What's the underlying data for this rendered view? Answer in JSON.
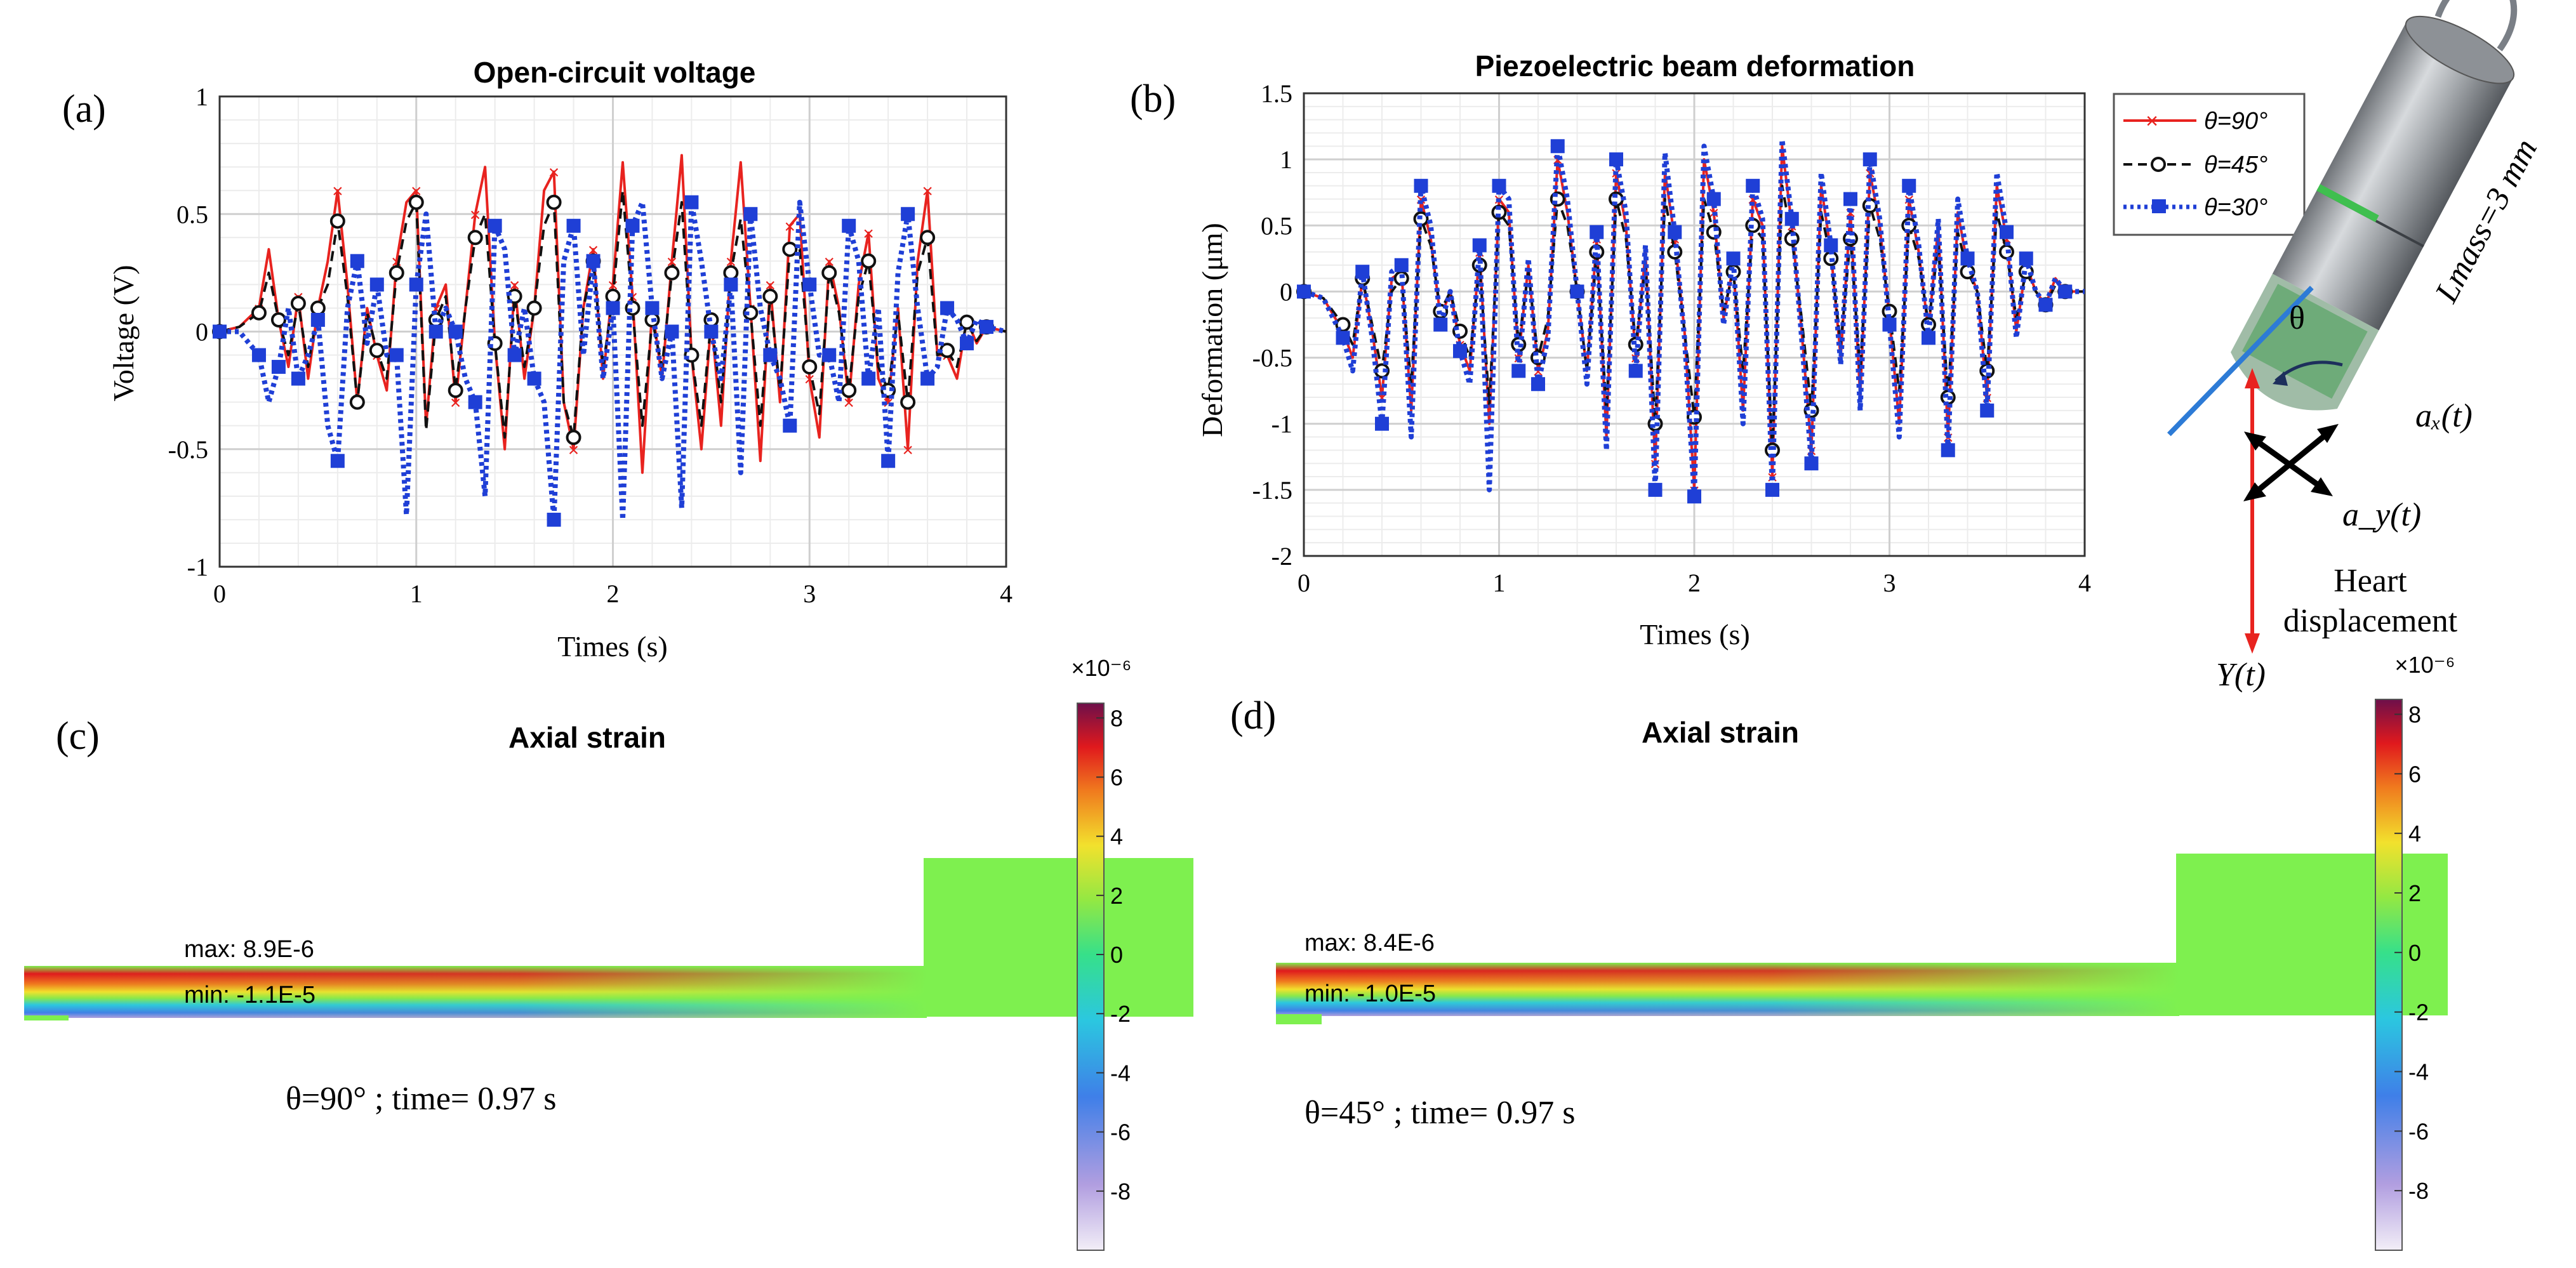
{
  "panels": {
    "a": "(a)",
    "b": "(b)",
    "c": "(c)",
    "d": "(d)"
  },
  "chart_data": [
    {
      "type": "line",
      "panel": "(a)",
      "title": "Open-circuit voltage",
      "xlabel": "Times (s)",
      "ylabel": "Voltage (V)",
      "xlim": [
        0,
        4
      ],
      "ylim": [
        -1,
        1
      ],
      "xticks": [
        "0",
        "1",
        "2",
        "3",
        "4"
      ],
      "yticks": [
        "-1",
        "-0.5",
        "0",
        "0.5",
        "1"
      ],
      "grid": true,
      "x": [
        0.0,
        0.1,
        0.2,
        0.25,
        0.3,
        0.35,
        0.4,
        0.45,
        0.5,
        0.55,
        0.6,
        0.65,
        0.7,
        0.75,
        0.8,
        0.85,
        0.9,
        0.95,
        1.0,
        1.05,
        1.1,
        1.15,
        1.2,
        1.25,
        1.3,
        1.35,
        1.4,
        1.45,
        1.5,
        1.55,
        1.6,
        1.65,
        1.7,
        1.75,
        1.8,
        1.85,
        1.9,
        1.95,
        2.0,
        2.05,
        2.1,
        2.15,
        2.2,
        2.25,
        2.3,
        2.35,
        2.4,
        2.45,
        2.5,
        2.55,
        2.6,
        2.65,
        2.7,
        2.75,
        2.8,
        2.85,
        2.9,
        2.95,
        3.0,
        3.05,
        3.1,
        3.15,
        3.2,
        3.25,
        3.3,
        3.35,
        3.4,
        3.45,
        3.5,
        3.55,
        3.6,
        3.65,
        3.7,
        3.75,
        3.8,
        3.85,
        3.9,
        4.0
      ],
      "series": [
        {
          "name": "θ=90°",
          "color": "#e8231f",
          "dash": "solid",
          "marker": "x",
          "values": [
            0.0,
            0.02,
            0.1,
            0.35,
            0.05,
            -0.15,
            0.15,
            -0.2,
            0.1,
            0.3,
            0.6,
            0.2,
            -0.3,
            0.1,
            -0.1,
            -0.25,
            0.3,
            0.55,
            0.6,
            -0.4,
            0.1,
            0.2,
            -0.3,
            0.1,
            0.5,
            0.7,
            -0.05,
            -0.5,
            0.2,
            -0.2,
            0.1,
            0.6,
            0.68,
            -0.3,
            -0.5,
            0.1,
            0.35,
            -0.2,
            0.2,
            0.72,
            0.15,
            -0.6,
            0.1,
            -0.2,
            0.3,
            0.75,
            -0.1,
            -0.5,
            0.05,
            -0.4,
            0.3,
            0.72,
            0.1,
            -0.55,
            0.2,
            -0.3,
            0.45,
            0.5,
            -0.2,
            -0.45,
            0.3,
            0.1,
            -0.3,
            0.2,
            0.42,
            -0.2,
            -0.3,
            0.1,
            -0.5,
            0.3,
            0.6,
            -0.1,
            -0.1,
            -0.2,
            0.05,
            -0.05,
            0.02,
            0.0
          ]
        },
        {
          "name": "θ=45°",
          "color": "#111111",
          "dash": "dashed",
          "marker": "o",
          "values": [
            0.0,
            0.02,
            0.08,
            0.25,
            0.05,
            -0.1,
            0.12,
            -0.15,
            0.1,
            0.2,
            0.47,
            0.15,
            -0.3,
            0.08,
            -0.08,
            -0.2,
            0.25,
            0.47,
            0.55,
            -0.42,
            0.05,
            0.15,
            -0.25,
            0.1,
            0.4,
            0.5,
            -0.05,
            -0.45,
            0.15,
            -0.15,
            0.1,
            0.45,
            0.55,
            -0.3,
            -0.45,
            0.1,
            0.3,
            -0.15,
            0.15,
            0.6,
            0.1,
            -0.4,
            0.05,
            -0.15,
            0.25,
            0.55,
            -0.1,
            -0.4,
            0.05,
            -0.3,
            0.25,
            0.48,
            0.08,
            -0.4,
            0.15,
            -0.25,
            0.35,
            0.35,
            -0.15,
            -0.35,
            0.25,
            0.08,
            -0.25,
            0.15,
            0.3,
            -0.15,
            -0.25,
            0.08,
            -0.3,
            0.25,
            0.4,
            -0.1,
            -0.08,
            -0.15,
            0.04,
            -0.04,
            0.02,
            0.0
          ]
        },
        {
          "name": "θ=30°",
          "color": "#1f3fd6",
          "dash": "dotted",
          "marker": "s",
          "values": [
            0.0,
            0.0,
            -0.1,
            -0.3,
            -0.15,
            0.1,
            -0.2,
            -0.1,
            0.05,
            -0.4,
            -0.55,
            0.1,
            0.3,
            -0.05,
            0.2,
            -0.1,
            -0.1,
            -0.78,
            0.2,
            0.5,
            0.0,
            0.1,
            0.0,
            -0.2,
            -0.3,
            -0.7,
            0.45,
            0.35,
            -0.1,
            0.1,
            -0.2,
            -0.3,
            -0.8,
            0.3,
            0.45,
            -0.1,
            0.3,
            -0.2,
            0.1,
            -0.8,
            0.45,
            0.55,
            0.1,
            -0.2,
            0.0,
            -0.75,
            0.55,
            0.3,
            0.0,
            -0.2,
            0.2,
            -0.6,
            0.5,
            0.1,
            -0.1,
            -0.2,
            -0.4,
            0.55,
            0.2,
            -0.1,
            -0.1,
            -0.3,
            0.45,
            0.3,
            -0.2,
            0.1,
            -0.55,
            0.25,
            0.5,
            0.1,
            -0.2,
            -0.15,
            0.1,
            0.05,
            -0.05,
            0.05,
            0.02,
            0.0
          ]
        }
      ]
    },
    {
      "type": "line",
      "panel": "(b)",
      "title": "Piezoelectric beam deformation",
      "xlabel": "Times (s)",
      "ylabel": "Deformation (μm)",
      "xlim": [
        0,
        4
      ],
      "ylim": [
        -2,
        1.5
      ],
      "xticks": [
        "0",
        "1",
        "2",
        "3",
        "4"
      ],
      "yticks": [
        "-2",
        "-1.5",
        "-1",
        "-0.5",
        "0",
        "0.5",
        "1",
        "1.5"
      ],
      "grid": true,
      "legend": "top-right",
      "x": [
        0.0,
        0.1,
        0.2,
        0.25,
        0.3,
        0.35,
        0.4,
        0.45,
        0.5,
        0.55,
        0.6,
        0.65,
        0.7,
        0.75,
        0.8,
        0.85,
        0.9,
        0.95,
        1.0,
        1.05,
        1.1,
        1.15,
        1.2,
        1.25,
        1.3,
        1.35,
        1.4,
        1.45,
        1.5,
        1.55,
        1.6,
        1.65,
        1.7,
        1.75,
        1.8,
        1.85,
        1.9,
        1.95,
        2.0,
        2.05,
        2.1,
        2.15,
        2.2,
        2.25,
        2.3,
        2.35,
        2.4,
        2.45,
        2.5,
        2.55,
        2.6,
        2.65,
        2.7,
        2.75,
        2.8,
        2.85,
        2.9,
        2.95,
        3.0,
        3.05,
        3.1,
        3.15,
        3.2,
        3.25,
        3.3,
        3.35,
        3.4,
        3.45,
        3.5,
        3.55,
        3.6,
        3.65,
        3.7,
        3.75,
        3.8,
        3.85,
        3.9,
        4.0
      ],
      "series": [
        {
          "name": "θ=90°",
          "color": "#e8231f",
          "dash": "solid",
          "marker": "x",
          "values": [
            0.0,
            -0.05,
            -0.3,
            -0.5,
            0.1,
            -0.3,
            -0.8,
            0.1,
            0.15,
            -0.9,
            0.7,
            0.4,
            -0.2,
            0.0,
            -0.4,
            -0.6,
            0.3,
            -1.0,
            0.7,
            0.6,
            -0.5,
            0.2,
            -0.6,
            -0.3,
            1.0,
            0.6,
            0.0,
            -0.6,
            0.4,
            -1.1,
            0.9,
            0.5,
            -0.5,
            0.3,
            -1.3,
            0.9,
            0.4,
            -0.3,
            -1.5,
            1.0,
            0.6,
            -0.2,
            0.2,
            -0.9,
            0.7,
            0.5,
            -1.4,
            1.1,
            0.5,
            -0.3,
            -1.2,
            0.8,
            0.3,
            -0.5,
            0.6,
            -0.8,
            0.9,
            0.5,
            -0.2,
            -1.0,
            0.7,
            0.3,
            -0.3,
            0.5,
            -1.1,
            0.6,
            0.2,
            0.0,
            -0.8,
            0.8,
            0.4,
            -0.3,
            0.2,
            0.0,
            -0.1,
            0.1,
            0.0,
            0.0
          ]
        },
        {
          "name": "θ=45°",
          "color": "#111111",
          "dash": "dashed",
          "marker": "o",
          "values": [
            0.0,
            -0.05,
            -0.25,
            -0.4,
            0.1,
            -0.25,
            -0.6,
            0.0,
            0.1,
            -0.7,
            0.55,
            0.35,
            -0.15,
            0.0,
            -0.3,
            -0.5,
            0.2,
            -0.85,
            0.6,
            0.5,
            -0.4,
            0.15,
            -0.5,
            -0.2,
            0.7,
            0.5,
            0.0,
            -0.6,
            0.3,
            -0.9,
            0.7,
            0.4,
            -0.4,
            0.2,
            -1.0,
            0.7,
            0.3,
            -0.3,
            -0.95,
            0.7,
            0.45,
            -0.15,
            0.15,
            -0.6,
            0.5,
            0.4,
            -1.2,
            0.8,
            0.4,
            -0.2,
            -0.9,
            0.6,
            0.25,
            -0.4,
            0.4,
            -0.6,
            0.65,
            0.4,
            -0.15,
            -0.75,
            0.5,
            0.25,
            -0.25,
            0.35,
            -0.8,
            0.45,
            0.15,
            0.0,
            -0.6,
            0.6,
            0.3,
            -0.2,
            0.15,
            0.0,
            -0.1,
            0.05,
            0.0,
            0.0
          ]
        },
        {
          "name": "θ=30°",
          "color": "#1f3fd6",
          "dash": "dotted",
          "marker": "s",
          "values": [
            0.0,
            -0.05,
            -0.35,
            -0.6,
            0.15,
            -0.35,
            -1.0,
            0.15,
            0.2,
            -1.1,
            0.8,
            0.5,
            -0.25,
            0.0,
            -0.45,
            -0.7,
            0.35,
            -1.5,
            0.8,
            0.7,
            -0.6,
            0.25,
            -0.7,
            -0.35,
            1.1,
            0.7,
            0.0,
            -0.7,
            0.45,
            -1.2,
            1.0,
            0.6,
            -0.6,
            0.35,
            -1.5,
            1.05,
            0.45,
            -0.35,
            -1.55,
            1.1,
            0.7,
            -0.25,
            0.25,
            -1.0,
            0.8,
            0.55,
            -1.5,
            1.15,
            0.55,
            -0.35,
            -1.3,
            0.9,
            0.35,
            -0.55,
            0.7,
            -0.9,
            1.0,
            0.55,
            -0.25,
            -1.1,
            0.8,
            0.35,
            -0.35,
            0.55,
            -1.2,
            0.7,
            0.25,
            0.0,
            -0.9,
            0.9,
            0.45,
            -0.35,
            0.25,
            0.0,
            -0.1,
            0.1,
            0.0,
            0.0
          ]
        }
      ]
    },
    {
      "type": "heatmap",
      "panel": "(c)",
      "title": "Axial strain",
      "max_text": "max: 8.9E-6",
      "min_text": "min: -1.1E-5",
      "caption": "θ=90° ; time= 0.97 s",
      "colorbar_exponent": "×10⁻⁶",
      "colorbar_ticks": [
        "8",
        "6",
        "4",
        "2",
        "0",
        "-2",
        "-4",
        "-6",
        "-8"
      ],
      "colorbar_range": [
        -10,
        8.5
      ]
    },
    {
      "type": "heatmap",
      "panel": "(d)",
      "title": "Axial strain",
      "max_text": "max: 8.4E-6",
      "min_text": "min: -1.0E-5",
      "caption": "θ=45° ; time= 0.97 s",
      "colorbar_exponent": "×10⁻⁶",
      "colorbar_ticks": [
        "8",
        "6",
        "4",
        "2",
        "0",
        "-2",
        "-4",
        "-6",
        "-8"
      ],
      "colorbar_range": [
        -10,
        8.5
      ]
    }
  ],
  "device": {
    "lmass_label": "Lmass=3 mm",
    "theta": "θ",
    "ax": "aₓ(t)",
    "ay": "a_y(t)",
    "heart_line1": "Heart",
    "heart_line2": "displacement",
    "y_label": "Y(t)"
  },
  "colors": {
    "red": "#e8231f",
    "black": "#111111",
    "blue": "#1f3fd6",
    "grid": "#d9d9d9",
    "beam_green": "#7ef04f"
  }
}
